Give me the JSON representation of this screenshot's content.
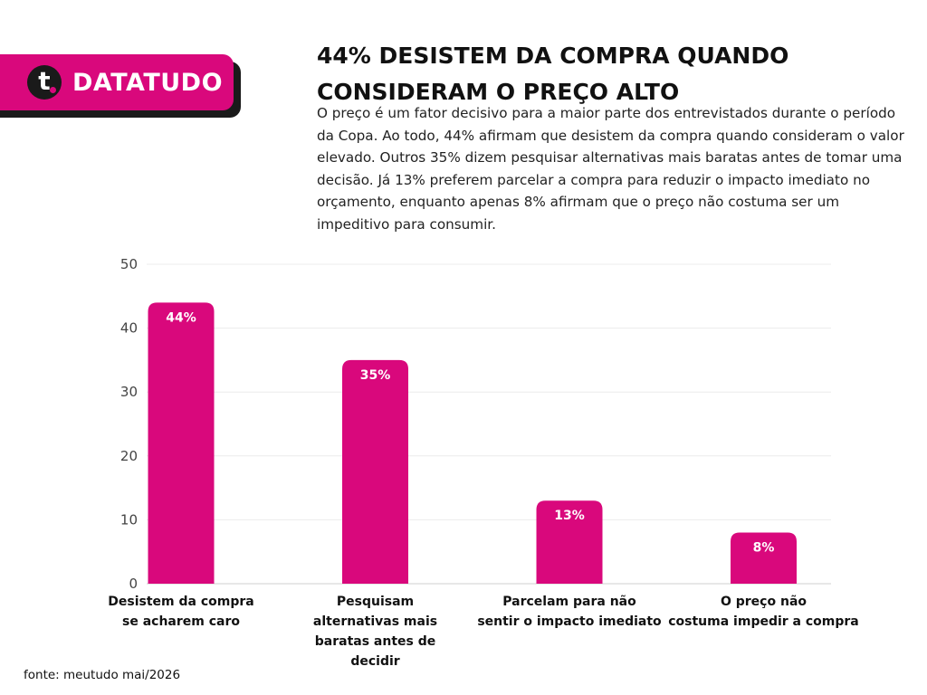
{
  "brand": {
    "logo_letter": "t",
    "name": "DATATUDO",
    "color": "#d9087c"
  },
  "header": {
    "title_line1": "44% DESISTEM DA COMPRA QUANDO",
    "title_line2": "CONSIDERAM O PREÇO ALTO",
    "description": "O preço é um fator decisivo para a maior parte dos entrevistados durante o período da Copa. Ao todo, 44% afirmam que desistem da compra quando consideram o valor elevado. Outros 35% dizem pesquisar alternativas mais baratas antes de tomar uma decisão. Já 13% preferem parcelar a compra para reduzir o impacto imediato no orçamento, enquanto apenas 8% afirmam que o preço não costuma ser um impeditivo para consumir."
  },
  "chart_data": {
    "type": "bar",
    "title": "",
    "xlabel": "",
    "ylabel": "",
    "ylim": [
      0,
      50
    ],
    "yticks": [
      0,
      10,
      20,
      30,
      40,
      50
    ],
    "grid": true,
    "legend": "none",
    "bar_color": "#d9087c",
    "categories": [
      [
        "Desistem da compra",
        "se acharem caro"
      ],
      [
        "Pesquisam",
        "alternativas mais",
        "baratas antes de",
        "decidir"
      ],
      [
        "Parcelam para não",
        "sentir o impacto imediato"
      ],
      [
        "O preço não",
        "costuma impedir a compra"
      ]
    ],
    "values": [
      44,
      35,
      13,
      8
    ],
    "data_labels": [
      "44%",
      "35%",
      "13%",
      "8%"
    ]
  },
  "footer": {
    "source": "fonte: meutudo mai/2026"
  }
}
